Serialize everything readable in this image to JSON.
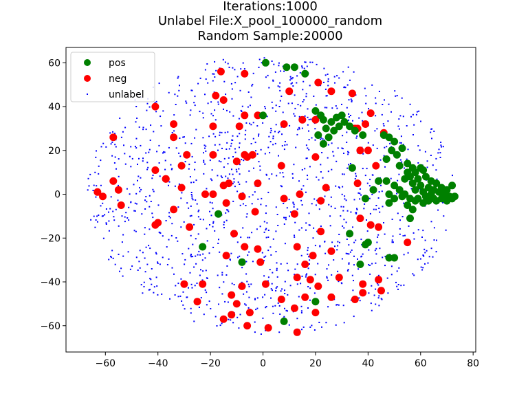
{
  "chart_data": {
    "type": "scatter",
    "title_lines": [
      "Iterations:1000",
      "Unlabel File:X_pool_100000_random",
      "Random Sample:20000"
    ],
    "xlabel": "",
    "ylabel": "",
    "xlim": [
      -75,
      81
    ],
    "ylim": [
      -72,
      67
    ],
    "x_ticks": [
      -60,
      -40,
      -20,
      0,
      20,
      40,
      60,
      80
    ],
    "y_ticks": [
      -60,
      -40,
      -20,
      0,
      20,
      40,
      60
    ],
    "x_tick_labels": [
      "−60",
      "−40",
      "−20",
      "0",
      "20",
      "40",
      "60",
      "80"
    ],
    "y_tick_labels": [
      "−60",
      "−40",
      "−20",
      "0",
      "20",
      "40",
      "60"
    ],
    "grid": false,
    "legend_position": "upper-left",
    "series": [
      {
        "name": "pos",
        "color": "#008000",
        "marker": "large-circle",
        "points": [
          [
            1,
            60
          ],
          [
            9,
            58
          ],
          [
            12,
            58
          ],
          [
            16,
            55
          ],
          [
            0,
            36
          ],
          [
            20,
            38
          ],
          [
            22,
            36
          ],
          [
            23,
            34
          ],
          [
            26,
            33
          ],
          [
            28,
            35
          ],
          [
            30,
            36
          ],
          [
            24,
            30
          ],
          [
            27,
            29
          ],
          [
            29,
            31
          ],
          [
            31,
            33
          ],
          [
            33,
            31
          ],
          [
            35,
            29
          ],
          [
            38,
            27
          ],
          [
            21,
            27
          ],
          [
            25,
            26
          ],
          [
            23,
            23
          ],
          [
            46,
            27
          ],
          [
            48,
            26
          ],
          [
            50,
            24
          ],
          [
            49,
            20
          ],
          [
            47,
            16
          ],
          [
            51,
            18
          ],
          [
            53,
            21
          ],
          [
            34,
            12
          ],
          [
            55,
            14
          ],
          [
            57,
            12
          ],
          [
            60,
            12
          ],
          [
            52,
            13
          ],
          [
            55,
            10
          ],
          [
            58,
            10
          ],
          [
            61,
            11
          ],
          [
            56,
            8
          ],
          [
            59,
            7
          ],
          [
            62,
            8
          ],
          [
            64,
            6
          ],
          [
            66,
            5
          ],
          [
            68,
            3
          ],
          [
            70,
            2
          ],
          [
            72,
            4
          ],
          [
            54,
            7
          ],
          [
            57,
            5
          ],
          [
            60,
            4
          ],
          [
            63,
            3
          ],
          [
            65,
            2
          ],
          [
            67,
            1
          ],
          [
            69,
            0
          ],
          [
            71,
            -1
          ],
          [
            73,
            -1
          ],
          [
            58,
            2
          ],
          [
            61,
            1
          ],
          [
            64,
            0
          ],
          [
            59,
            -2
          ],
          [
            62,
            -1
          ],
          [
            65,
            -2
          ],
          [
            50,
            4
          ],
          [
            52,
            2
          ],
          [
            54,
            0
          ],
          [
            56,
            -2
          ],
          [
            58,
            -3
          ],
          [
            61,
            -4
          ],
          [
            63,
            -3
          ],
          [
            66,
            -3
          ],
          [
            68,
            -2
          ],
          [
            70,
            -3
          ],
          [
            72,
            -2
          ],
          [
            50,
            -2
          ],
          [
            53,
            -1
          ],
          [
            55,
            -5
          ],
          [
            57,
            -7
          ],
          [
            48,
            0
          ],
          [
            56,
            -11
          ],
          [
            42,
            2
          ],
          [
            44,
            6
          ],
          [
            47,
            6
          ],
          [
            48,
            -4
          ],
          [
            39,
            -2
          ],
          [
            33,
            -18
          ],
          [
            39,
            -23
          ],
          [
            40,
            -22
          ],
          [
            -17,
            -9
          ],
          [
            -23,
            -24
          ],
          [
            -8,
            -31
          ],
          [
            37,
            -32
          ],
          [
            48,
            -29
          ],
          [
            50,
            -29
          ],
          [
            20,
            -49
          ],
          [
            8,
            -58
          ]
        ]
      },
      {
        "name": "neg",
        "color": "#ff0000",
        "marker": "large-circle",
        "points": [
          [
            -16,
            56
          ],
          [
            -7,
            55
          ],
          [
            10,
            47
          ],
          [
            21,
            51
          ],
          [
            26,
            47
          ],
          [
            34,
            46
          ],
          [
            -41,
            40
          ],
          [
            -18,
            45
          ],
          [
            -15,
            43
          ],
          [
            -7,
            36
          ],
          [
            15,
            34
          ],
          [
            20,
            34
          ],
          [
            8,
            32
          ],
          [
            35,
            30
          ],
          [
            36,
            30
          ],
          [
            39,
            32
          ],
          [
            41,
            37
          ],
          [
            46,
            28
          ],
          [
            -2,
            36
          ],
          [
            -34,
            32
          ],
          [
            -19,
            31
          ],
          [
            -9,
            31
          ],
          [
            -34,
            26
          ],
          [
            -57,
            26
          ],
          [
            -29,
            18
          ],
          [
            -19,
            18
          ],
          [
            -7,
            18
          ],
          [
            -4,
            18
          ],
          [
            -6,
            17
          ],
          [
            -41,
            11
          ],
          [
            -37,
            7
          ],
          [
            -31,
            13
          ],
          [
            -10,
            15
          ],
          [
            7,
            13
          ],
          [
            20,
            17
          ],
          [
            37,
            20
          ],
          [
            43,
            13
          ],
          [
            40,
            20
          ],
          [
            -63,
            1
          ],
          [
            -61,
            -1
          ],
          [
            -57,
            6
          ],
          [
            -55,
            2
          ],
          [
            -54,
            -5
          ],
          [
            -37,
            7
          ],
          [
            -31,
            3
          ],
          [
            -22,
            0
          ],
          [
            -19,
            0
          ],
          [
            -15,
            4
          ],
          [
            -13,
            5
          ],
          [
            -8,
            -1
          ],
          [
            -2,
            5
          ],
          [
            8,
            -2
          ],
          [
            14,
            0
          ],
          [
            22,
            -3
          ],
          [
            24,
            3
          ],
          [
            36,
            5
          ],
          [
            37,
            -11
          ],
          [
            41,
            -14
          ],
          [
            44,
            -15
          ],
          [
            -40,
            -13
          ],
          [
            -41,
            -14
          ],
          [
            -34,
            -7
          ],
          [
            -28,
            -15
          ],
          [
            -14,
            -4
          ],
          [
            -11,
            -18
          ],
          [
            -3,
            -8
          ],
          [
            12,
            -9
          ],
          [
            22,
            -17
          ],
          [
            -14,
            -28
          ],
          [
            -7,
            -24
          ],
          [
            -2,
            -25
          ],
          [
            -1,
            -31
          ],
          [
            13,
            -24
          ],
          [
            19,
            -28
          ],
          [
            26,
            -26
          ],
          [
            -30,
            -41
          ],
          [
            -23,
            -41
          ],
          [
            -12,
            -46
          ],
          [
            -8,
            -42
          ],
          [
            1,
            -41
          ],
          [
            13,
            -38
          ],
          [
            16,
            -32
          ],
          [
            18,
            -39
          ],
          [
            21,
            -42
          ],
          [
            29,
            -38
          ],
          [
            38,
            -41
          ],
          [
            44,
            -39
          ],
          [
            45,
            -44
          ],
          [
            -25,
            -49
          ],
          [
            -10,
            -50
          ],
          [
            -5,
            -54
          ],
          [
            -15,
            -57
          ],
          [
            -12,
            -55
          ],
          [
            -6,
            -60
          ],
          [
            2,
            -61
          ],
          [
            7,
            -48
          ],
          [
            12,
            -52
          ],
          [
            16,
            -47
          ],
          [
            20,
            -54
          ],
          [
            26,
            -47
          ],
          [
            35,
            -48
          ],
          [
            38,
            -45
          ],
          [
            13,
            -63
          ],
          [
            55,
            -22
          ]
        ]
      },
      {
        "name": "unlabel",
        "color": "#0000ff",
        "marker": "small-dot",
        "generator": "scattered",
        "count": 1400,
        "seed": 20000
      }
    ]
  },
  "legend": {
    "items": [
      {
        "name": "pos",
        "color": "#008000"
      },
      {
        "name": "neg",
        "color": "#ff0000"
      },
      {
        "name": "unlabel",
        "color": "#0000ff"
      }
    ]
  }
}
